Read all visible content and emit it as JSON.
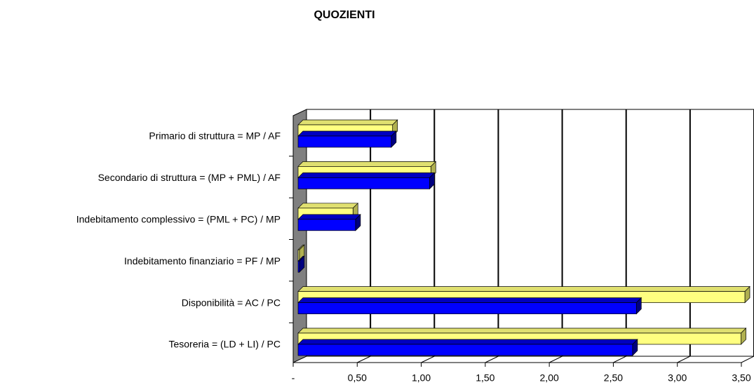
{
  "chart_data": {
    "type": "bar",
    "orientation": "horizontal",
    "title": "QUOZIENTI",
    "categories": [
      "Primario di struttura = MP / AF",
      "Secondario di struttura = (MP + PML) / AF",
      "Indebitamento complessivo  = (PML + PC) / MP",
      "Indebitamento finanziario = PF / MP",
      "Disponibilità  = AC / PC",
      "Tesoreria  = (LD + LI) / PC"
    ],
    "series": [
      {
        "color": "#ffff80",
        "values": [
          0.74,
          1.04,
          0.43,
          0.01,
          3.5,
          3.47
        ]
      },
      {
        "color": "#0000ff",
        "values": [
          0.73,
          1.03,
          0.45,
          0.01,
          2.65,
          2.62
        ]
      }
    ],
    "xlim": [
      0,
      3.5
    ],
    "xticks": [
      {
        "value": 0,
        "label": "-"
      },
      {
        "value": 0.5,
        "label": "0,50"
      },
      {
        "value": 1,
        "label": "1,00"
      },
      {
        "value": 1.5,
        "label": "1,50"
      },
      {
        "value": 2,
        "label": "2,00"
      },
      {
        "value": 2.5,
        "label": "2,50"
      },
      {
        "value": 3,
        "label": "3,00"
      },
      {
        "value": 3.5,
        "label": "3,50"
      }
    ],
    "grid": true
  }
}
